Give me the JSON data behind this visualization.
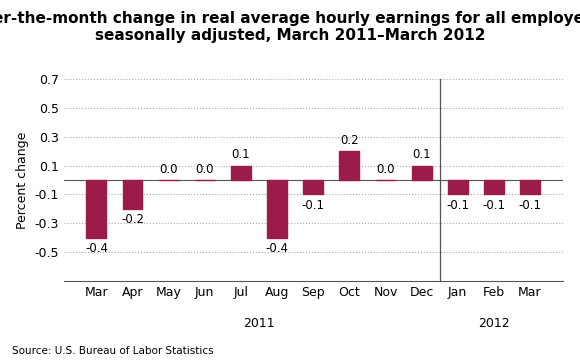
{
  "title_line1": "Over-the-month change in real average hourly earnings for all employees,",
  "title_line2": "seasonally adjusted, March 2011–March 2012",
  "categories": [
    "Mar",
    "Apr",
    "May",
    "Jun",
    "Jul",
    "Aug",
    "Sep",
    "Oct",
    "Nov",
    "Dec",
    "Jan",
    "Feb",
    "Mar"
  ],
  "values": [
    -0.4,
    -0.2,
    0.0,
    0.0,
    0.1,
    -0.4,
    -0.1,
    0.2,
    0.0,
    0.1,
    -0.1,
    -0.1,
    -0.1
  ],
  "bar_color": "#9B1B4A",
  "ylim": [
    -0.7,
    0.7
  ],
  "yticks": [
    -0.5,
    -0.3,
    -0.1,
    0.1,
    0.3,
    0.5,
    0.7
  ],
  "ylabel": "Percent change",
  "source_text": "Source: U.S. Bureau of Labor Statistics",
  "background_color": "#ffffff",
  "grid_color": "#aaaaaa",
  "title_fontsize": 11,
  "label_fontsize": 9,
  "bar_label_fontsize": 8.5
}
